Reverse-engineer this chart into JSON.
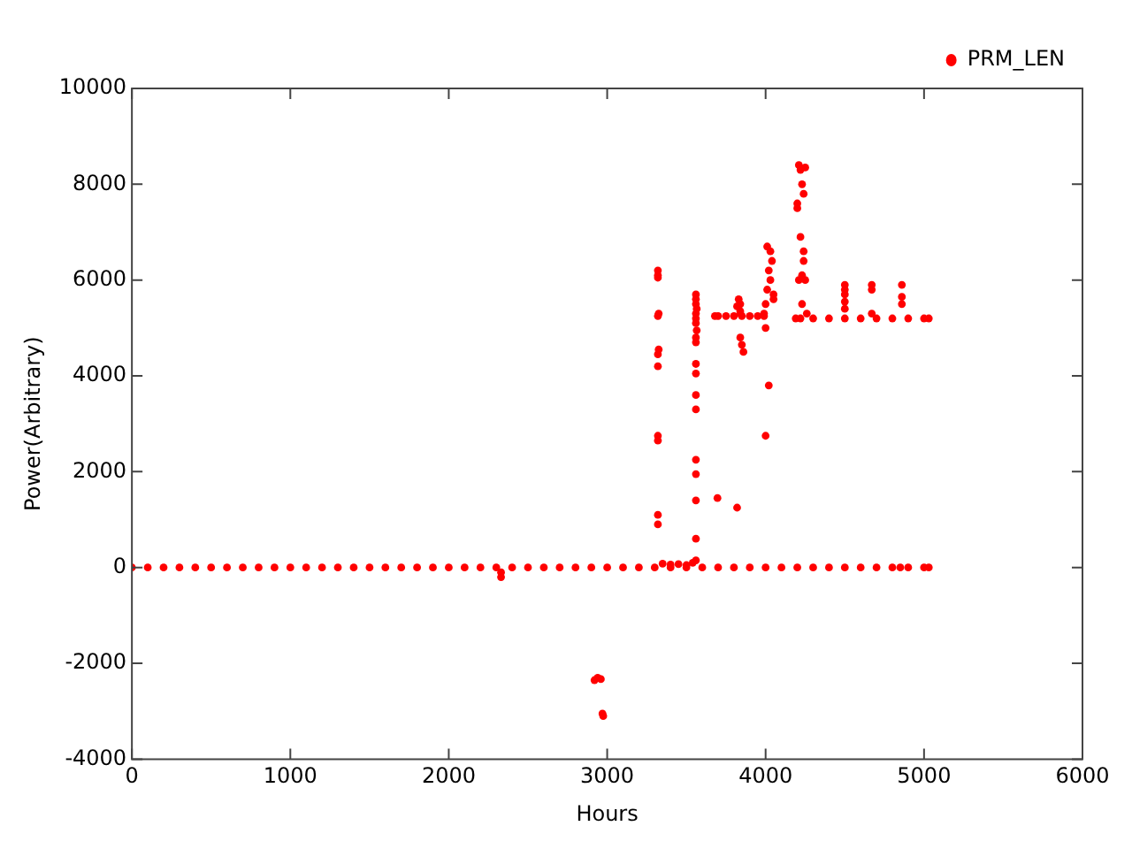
{
  "chart_data": {
    "type": "scatter",
    "xlabel": "Hours",
    "ylabel": "Power(Arbitrary)",
    "xlim": [
      0,
      6000
    ],
    "ylim": [
      -4000,
      10000
    ],
    "xticks": [
      0,
      1000,
      2000,
      3000,
      4000,
      5000,
      6000
    ],
    "yticks": [
      -4000,
      -2000,
      0,
      2000,
      4000,
      6000,
      8000,
      10000
    ],
    "grid": false,
    "legend": "top right",
    "marker": "circle",
    "series": [
      {
        "name": "PRM_LEN",
        "color": "#ff0000",
        "x": [
          0,
          100,
          200,
          300,
          400,
          500,
          600,
          700,
          800,
          900,
          1000,
          1100,
          1200,
          1300,
          1400,
          1500,
          1600,
          1700,
          1800,
          1900,
          2000,
          2100,
          2200,
          2300,
          2400,
          2500,
          2600,
          2700,
          2800,
          2900,
          3000,
          3100,
          3200,
          3300,
          3400,
          3500,
          3600,
          3700,
          3800,
          3900,
          4000,
          4100,
          4200,
          4300,
          4400,
          4500,
          4600,
          4700,
          4800,
          4850,
          4900,
          5000,
          5030,
          2330,
          2330,
          2920,
          2940,
          2960,
          2970,
          2975,
          3320,
          3320,
          3320,
          3325,
          3320,
          3325,
          3320,
          3320,
          3320,
          3320,
          3320,
          3320,
          3350,
          3400,
          3450,
          3500,
          3540,
          3560,
          3560,
          3560,
          3565,
          3560,
          3560,
          3560,
          3565,
          3560,
          3560,
          3560,
          3560,
          3560,
          3560,
          3560,
          3560,
          3560,
          3560,
          3560,
          3680,
          3700,
          3750,
          3800,
          3850,
          3900,
          3950,
          3990,
          3696,
          3820,
          3820,
          3830,
          3840,
          3850,
          3860,
          3840,
          3840,
          3840,
          3990,
          4000,
          4010,
          4020,
          4030,
          4040,
          4000,
          4020,
          4030,
          4010,
          4050,
          4000,
          4050,
          4200,
          4210,
          4220,
          4230,
          4240,
          4250,
          4220,
          4240,
          4210,
          4200,
          4230,
          4240,
          4230,
          4250,
          4260,
          4190,
          4220,
          4300,
          4400,
          4500,
          4600,
          4700,
          4800,
          4900,
          5000,
          5030,
          4500,
          4500,
          4500,
          4500,
          4500,
          4670,
          4670,
          4670,
          4860,
          4860,
          4860
        ],
        "values": [
          0,
          0,
          0,
          0,
          0,
          0,
          0,
          0,
          0,
          0,
          0,
          0,
          0,
          0,
          0,
          0,
          0,
          0,
          0,
          0,
          0,
          0,
          0,
          0,
          0,
          0,
          0,
          0,
          0,
          0,
          0,
          0,
          0,
          0,
          0,
          0,
          0,
          0,
          0,
          0,
          0,
          0,
          0,
          0,
          0,
          0,
          0,
          0,
          0,
          0,
          0,
          0,
          0,
          -100,
          -200,
          -2350,
          -2300,
          -2330,
          -3050,
          -3100,
          6200,
          6100,
          6050,
          5300,
          5250,
          4550,
          4450,
          4200,
          2750,
          2650,
          1100,
          900,
          80,
          60,
          70,
          50,
          100,
          5700,
          5600,
          5500,
          5400,
          5300,
          5200,
          5100,
          4950,
          4800,
          4700,
          4250,
          4050,
          3600,
          3300,
          2250,
          1950,
          1400,
          600,
          150,
          5250,
          5250,
          5250,
          5250,
          5250,
          5250,
          5250,
          5250,
          1450,
          1250,
          5450,
          5600,
          4800,
          4650,
          4500,
          5500,
          5350,
          5300,
          5300,
          5500,
          5800,
          6200,
          6600,
          6400,
          5000,
          3800,
          6000,
          6700,
          5700,
          2750,
          5600,
          7500,
          8400,
          8300,
          8000,
          7800,
          8350,
          6900,
          6600,
          6000,
          7600,
          5500,
          6400,
          6100,
          6000,
          5300,
          5200,
          5200,
          5200,
          5200,
          5200,
          5200,
          5200,
          5200,
          5200,
          5200,
          5200,
          5900,
          5800,
          5700,
          5550,
          5400,
          5900,
          5800,
          5300,
          5900,
          5650,
          5500
        ]
      }
    ]
  }
}
